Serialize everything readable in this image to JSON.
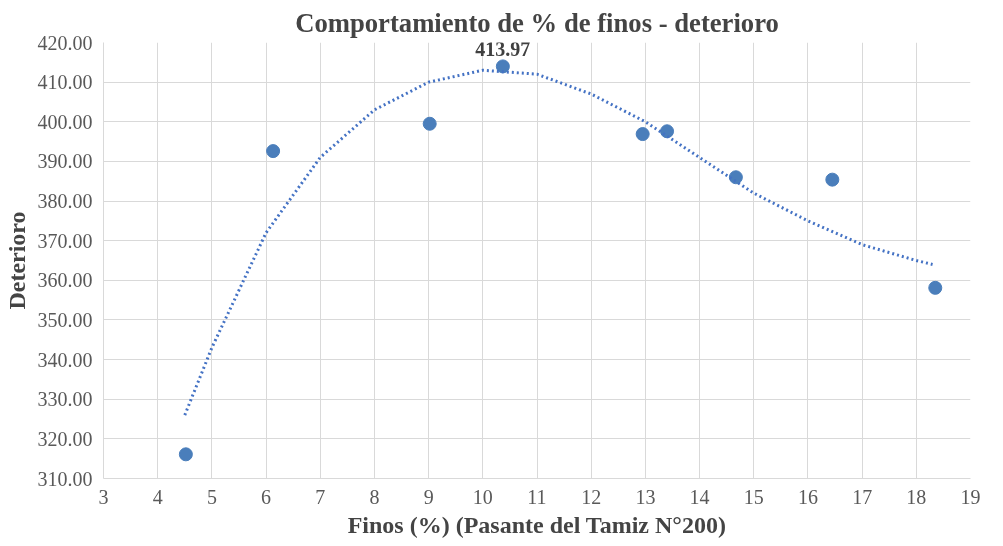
{
  "chart_data": {
    "type": "scatter",
    "title": "Comportamiento de % de finos - deterioro",
    "xlabel": "Finos (%) (Pasante del Tamiz N°200)",
    "ylabel": "Deterioro",
    "xlim": [
      3,
      19
    ],
    "xticks": [
      3,
      4,
      5,
      6,
      7,
      8,
      9,
      10,
      11,
      12,
      13,
      14,
      15,
      16,
      17,
      18,
      19
    ],
    "ylim": [
      310,
      420
    ],
    "yticks": [
      {
        "value": 310,
        "label": "310.00"
      },
      {
        "value": 320,
        "label": "320.00"
      },
      {
        "value": 330,
        "label": "330.00"
      },
      {
        "value": 340,
        "label": "340.00"
      },
      {
        "value": 350,
        "label": "350.00"
      },
      {
        "value": 360,
        "label": "360.00"
      },
      {
        "value": 370,
        "label": "370.00"
      },
      {
        "value": 380,
        "label": "380.00"
      },
      {
        "value": 390,
        "label": "390.00"
      },
      {
        "value": 400,
        "label": "400.00"
      },
      {
        "value": 410,
        "label": "410.00"
      },
      {
        "value": 420,
        "label": "420.00"
      }
    ],
    "grid": true,
    "series": [
      {
        "marker": "circle",
        "color": "#4a7ebb",
        "x": [
          4.52,
          6.13,
          9.02,
          10.37,
          12.95,
          13.4,
          14.67,
          16.45,
          18.35
        ],
        "values": [
          316.1,
          392.6,
          399.5,
          413.97,
          396.9,
          397.6,
          386.0,
          385.4,
          358.1
        ],
        "value_labels": [
          null,
          null,
          null,
          "413.97",
          null,
          null,
          null,
          null,
          null
        ]
      },
      {
        "type": "line",
        "line_style": "dotted",
        "color": "#4472c4",
        "x": [
          4.5,
          5,
          6,
          7,
          8,
          9,
          10,
          11,
          12,
          13,
          14,
          15,
          16,
          17,
          18,
          18.3
        ],
        "values": [
          326,
          343,
          372,
          391,
          403,
          410,
          413,
          412,
          407,
          400,
          391,
          382,
          375,
          369,
          365,
          364
        ]
      }
    ]
  }
}
